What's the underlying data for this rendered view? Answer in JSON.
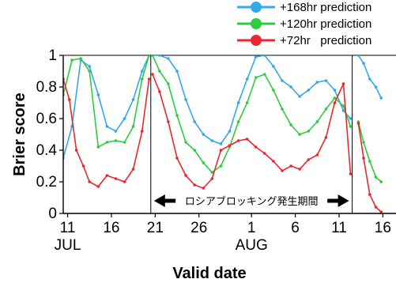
{
  "chart_data": {
    "type": "line",
    "xlabel": "Valid date",
    "ylabel": "Brier score",
    "ylim": [
      0,
      1
    ],
    "yticks": [
      "0",
      "0.2",
      "0.4",
      "0.6",
      "0.8",
      "1"
    ],
    "xticks": [
      {
        "day": 11,
        "label": "11"
      },
      {
        "day": 16,
        "label": "16"
      },
      {
        "day": 21,
        "label": "21"
      },
      {
        "day": 26,
        "label": "26"
      },
      {
        "day": 32,
        "label": "1"
      },
      {
        "day": 37,
        "label": "6"
      },
      {
        "day": 42,
        "label": "11"
      },
      {
        "day": 47,
        "label": "16"
      }
    ],
    "month_labels": [
      {
        "day": 11,
        "label": "JUL"
      },
      {
        "day": 32,
        "label": "AUG"
      }
    ],
    "xlim": [
      10.5,
      48.5
    ],
    "vlines": [
      20.5,
      43.5
    ],
    "annotation": {
      "text": "ロシアブロッキング発生期間",
      "start": 20.5,
      "end": 43.5,
      "y": 0.08
    },
    "legend": {
      "position": "top-right"
    },
    "series": [
      {
        "name": "+168hr prediction",
        "color": "#35a8e8",
        "segments": [
          {
            "x": [
              10.5,
              11.5,
              12.5,
              13.5,
              14.5,
              15.5,
              16.5,
              17.5,
              18.5,
              19.5,
              20.3
            ],
            "y": [
              0.35,
              0.55,
              0.97,
              0.93,
              0.75,
              0.55,
              0.52,
              0.6,
              0.72,
              0.9,
              1.0
            ]
          },
          {
            "x": [
              20.7,
              21.5,
              22.5,
              23.5,
              24.5,
              25.5,
              26.5,
              27.5,
              28.5,
              29.5,
              30.5,
              31.5,
              32.5,
              33.5,
              34.5,
              35.5,
              36.5,
              37.5,
              38.5,
              39.5,
              40.5,
              41.5,
              42.5,
              43.3
            ],
            "y": [
              1.0,
              1.0,
              0.98,
              0.9,
              0.72,
              0.58,
              0.5,
              0.46,
              0.44,
              0.52,
              0.7,
              0.85,
              0.99,
              1.0,
              0.93,
              0.84,
              0.8,
              0.74,
              0.78,
              0.83,
              0.84,
              0.78,
              0.65,
              0.6
            ]
          },
          {
            "x": [
              44.2,
              44.8,
              45.5,
              46.2,
              46.8
            ],
            "y": [
              1.0,
              0.95,
              0.85,
              0.8,
              0.73
            ]
          }
        ]
      },
      {
        "name": "+120hr prediction",
        "color": "#2ecc40",
        "segments": [
          {
            "x": [
              10.5,
              11.5,
              12.5,
              13.5,
              14.5,
              15.5,
              16.5,
              17.5,
              18.5,
              19.5,
              20.3
            ],
            "y": [
              0.75,
              0.97,
              0.98,
              0.9,
              0.42,
              0.45,
              0.46,
              0.45,
              0.55,
              0.85,
              1.0
            ]
          },
          {
            "x": [
              20.7,
              21.5,
              22.5,
              23.5,
              24.5,
              25.5,
              26.5,
              27.5,
              28.5,
              29.5,
              30.5,
              31.5,
              32.5,
              33.5,
              34.5,
              35.5,
              36.5,
              37.5,
              38.5,
              39.5,
              40.5,
              41.5,
              42.5,
              43.3
            ],
            "y": [
              1.0,
              0.9,
              0.82,
              0.62,
              0.45,
              0.4,
              0.32,
              0.26,
              0.3,
              0.42,
              0.58,
              0.7,
              0.86,
              0.88,
              0.78,
              0.66,
              0.56,
              0.5,
              0.52,
              0.58,
              0.66,
              0.73,
              0.68,
              0.55
            ]
          },
          {
            "x": [
              44.2,
              44.8,
              45.5,
              46.2,
              46.8
            ],
            "y": [
              0.58,
              0.45,
              0.33,
              0.23,
              0.2
            ]
          }
        ]
      },
      {
        "name": "+72hr   prediction",
        "color": "#e8282c",
        "segments": [
          {
            "x": [
              10.5,
              11.2,
              12.0,
              12.8,
              13.5,
              14.5,
              15.5,
              16.5,
              17.5,
              18.5,
              19.5,
              20.3
            ],
            "y": [
              0.85,
              0.72,
              0.4,
              0.3,
              0.2,
              0.17,
              0.24,
              0.22,
              0.2,
              0.28,
              0.52,
              0.85
            ]
          },
          {
            "x": [
              20.7,
              21.5,
              22.5,
              23.5,
              24.5,
              25.5,
              26.5,
              27.5,
              28.5,
              29.5,
              30.5,
              31.5,
              32.5,
              33.5,
              34.5,
              35.5,
              36.5,
              37.5,
              38.5,
              39.5,
              40.5,
              41.5,
              42.5,
              43.3
            ],
            "y": [
              0.88,
              0.77,
              0.58,
              0.35,
              0.24,
              0.18,
              0.16,
              0.22,
              0.4,
              0.43,
              0.46,
              0.47,
              0.42,
              0.38,
              0.33,
              0.27,
              0.3,
              0.28,
              0.34,
              0.37,
              0.48,
              0.7,
              0.82,
              0.25
            ]
          },
          {
            "x": [
              44.2,
              44.8,
              45.5,
              46.2,
              46.8
            ],
            "y": [
              0.57,
              0.35,
              0.12,
              0.04,
              0.01
            ]
          }
        ]
      }
    ]
  }
}
